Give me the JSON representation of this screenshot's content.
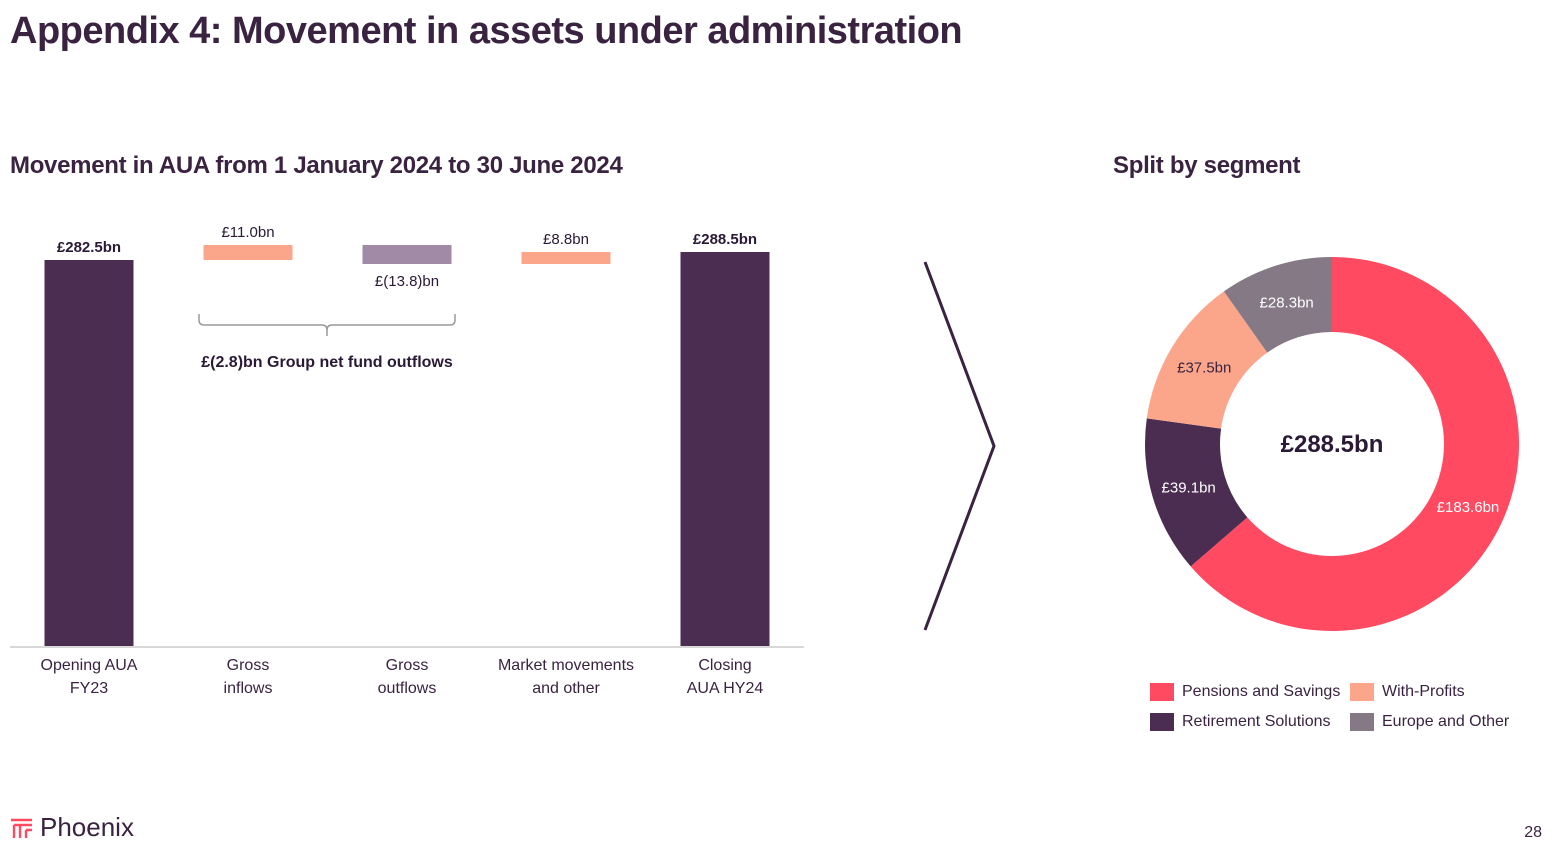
{
  "page": {
    "title": "Appendix 4: Movement in assets under administration",
    "page_number": "28",
    "logo_text": "Phoenix"
  },
  "waterfall": {
    "subtitle": "Movement in AUA from 1 January 2024 to 30 June 2024",
    "bracket_label": "£(2.8)bn Group net fund outflows"
  },
  "donut": {
    "subtitle": "Split by segment",
    "center_label": "£288.5bn"
  },
  "colors": {
    "dark_purple": "#4a2d50",
    "salmon": "#fba68a",
    "mauve": "#a08aa6",
    "pink_red": "#ff4a61",
    "grey_purple": "#857985",
    "arrow": "#3a2340"
  },
  "chart_data": [
    {
      "type": "bar",
      "subtype": "waterfall",
      "title": "Movement in AUA from 1 January 2024 to 30 June 2024",
      "unit": "£bn",
      "categories": [
        [
          "Opening AUA",
          "FY23"
        ],
        [
          "Gross",
          "inflows"
        ],
        [
          "Gross",
          "outflows"
        ],
        [
          "Market movements",
          "and other"
        ],
        [
          "Closing",
          "AUA HY24"
        ]
      ],
      "values": [
        282.5,
        11.0,
        -13.8,
        8.8,
        288.5
      ],
      "labels": [
        "£282.5bn",
        "£11.0bn",
        "£(13.8)bn",
        "£8.8bn",
        "£288.5bn"
      ],
      "kinds": [
        "total",
        "increase",
        "decrease",
        "increase",
        "total"
      ],
      "ylim": [
        0,
        295
      ]
    },
    {
      "type": "pie",
      "subtype": "donut",
      "title": "Split by segment",
      "total_label": "£288.5bn",
      "labels": [
        "Pensions and Savings",
        "Retirement Solutions",
        "With-Profits",
        "Europe and Other"
      ],
      "values": [
        183.6,
        39.1,
        37.5,
        28.3
      ],
      "value_labels": [
        "£183.6bn",
        "£39.1bn",
        "£37.5bn",
        "£28.3bn"
      ],
      "colors": [
        "#ff4a61",
        "#4a2d50",
        "#fba68a",
        "#857985"
      ],
      "legend_labels": [
        "Pensions and Savings",
        "With-Profits",
        "Retirement Solutions",
        "Europe and Other"
      ],
      "legend_colors": [
        "#ff4a61",
        "#fba68a",
        "#4a2d50",
        "#857985"
      ]
    }
  ]
}
